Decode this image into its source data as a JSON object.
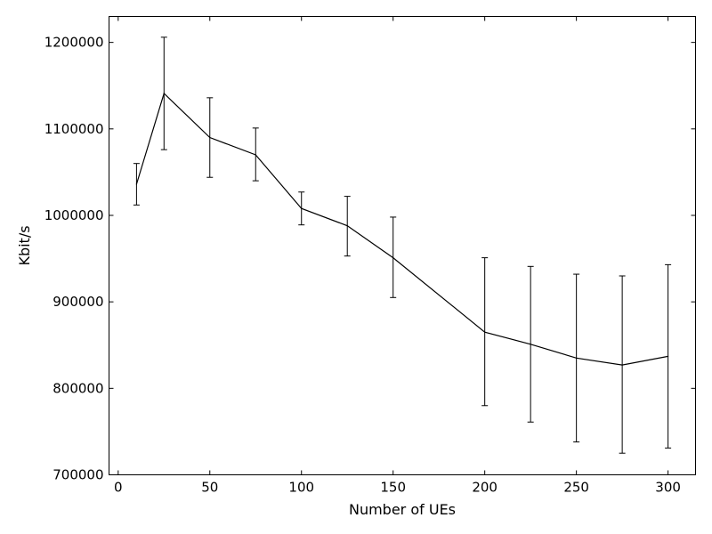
{
  "chart_data": {
    "type": "line",
    "title": "",
    "xlabel": "Number of UEs",
    "ylabel": "Kbit/s",
    "xlim": [
      -5,
      315
    ],
    "ylim": [
      700000,
      1230000
    ],
    "grid": false,
    "x_ticks": [
      0,
      50,
      100,
      150,
      200,
      250,
      300
    ],
    "y_ticks": [
      700000,
      800000,
      900000,
      1000000,
      1100000,
      1200000
    ],
    "x_tick_labels": [
      "0",
      "50",
      "100",
      "150",
      "200",
      "250",
      "300"
    ],
    "y_tick_labels": [
      "700000",
      "800000",
      "900000",
      "1000000",
      "1100000",
      "1200000"
    ],
    "series": [
      {
        "color": "#000000",
        "x": [
          10,
          25,
          50,
          75,
          100,
          125,
          150,
          200,
          225,
          250,
          275,
          300
        ],
        "y": [
          1036000,
          1141000,
          1090000,
          1070000,
          1008000,
          988000,
          951000,
          865000,
          851000,
          835000,
          827000,
          837000
        ],
        "err_low": [
          1012000,
          1076000,
          1044000,
          1040000,
          989000,
          953000,
          905000,
          780000,
          761000,
          738000,
          725000,
          731000
        ],
        "err_high": [
          1060000,
          1206000,
          1136000,
          1101000,
          1027000,
          1022000,
          998000,
          951000,
          941000,
          932000,
          930000,
          943000
        ]
      }
    ]
  }
}
